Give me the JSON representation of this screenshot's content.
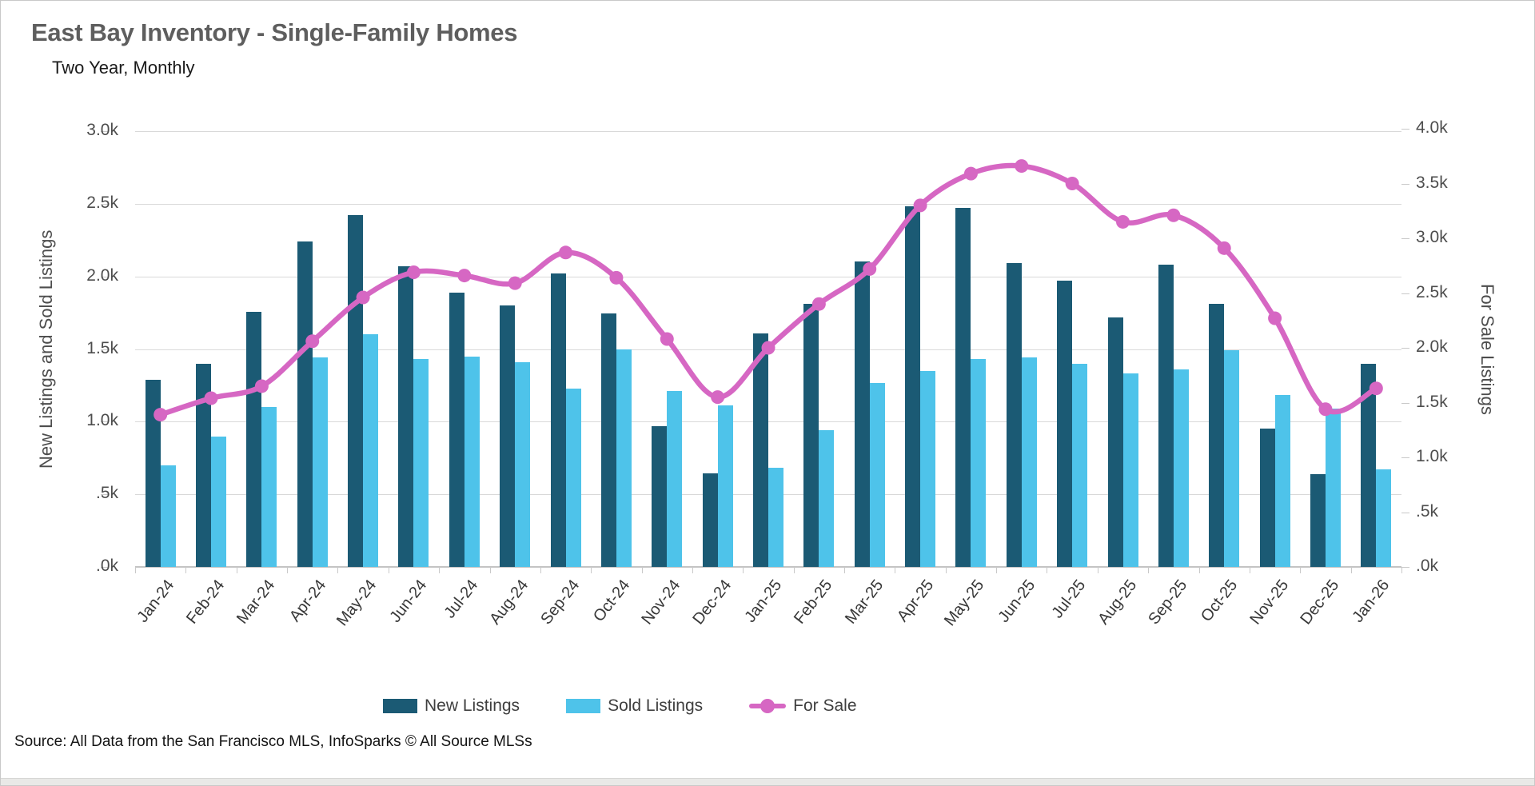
{
  "title": "East Bay Inventory - Single-Family Homes",
  "subtitle": "Two Year, Monthly",
  "source": "Source: All Data from the San Francisco MLS, InfoSparks © All Source MLSs",
  "colors": {
    "new_listings": "#1b5a74",
    "sold_listings": "#4ec3ea",
    "for_sale": "#d667c3",
    "gridline": "#d9d9d9",
    "axis_line": "#c4c4c4",
    "tick_text": "#4d4d4d",
    "x_label_text": "#383838",
    "title_text": "#5e5e5e"
  },
  "legend": {
    "items": [
      {
        "label": "New Listings",
        "marker": "bar",
        "color": "#1b5a74"
      },
      {
        "label": "Sold Listings",
        "marker": "bar",
        "color": "#4ec3ea"
      },
      {
        "label": "For Sale",
        "marker": "line-dot",
        "color": "#d667c3"
      }
    ]
  },
  "chart_data": {
    "type": "combo",
    "title": "East Bay Inventory - Single-Family Homes",
    "subtitle": "Two Year, Monthly",
    "grid": true,
    "legend_position": "bottom",
    "categories": [
      "Jan-24",
      "Feb-24",
      "Mar-24",
      "Apr-24",
      "May-24",
      "Jun-24",
      "Jul-24",
      "Aug-24",
      "Sep-24",
      "Oct-24",
      "Nov-24",
      "Dec-24",
      "Jan-25",
      "Feb-25",
      "Mar-25",
      "Apr-25",
      "May-25",
      "Jun-25",
      "Jul-25",
      "Aug-25",
      "Sep-25",
      "Oct-25",
      "Nov-25",
      "Dec-25",
      "Jan-26"
    ],
    "left_axis": {
      "label": "New Listings and Sold Listings",
      "range": [
        0,
        3000
      ],
      "ticks": [
        {
          "label": ".0k",
          "value": 0
        },
        {
          "label": ".5k",
          "value": 500
        },
        {
          "label": "1.0k",
          "value": 1000
        },
        {
          "label": "1.5k",
          "value": 1500
        },
        {
          "label": "2.0k",
          "value": 2000
        },
        {
          "label": "2.5k",
          "value": 2500
        },
        {
          "label": "3.0k",
          "value": 3000
        }
      ]
    },
    "right_axis": {
      "label": "For Sale Listings",
      "range": [
        0,
        4000
      ],
      "ticks": [
        {
          "label": ".0k",
          "value": 0
        },
        {
          "label": ".5k",
          "value": 500
        },
        {
          "label": "1.0k",
          "value": 1000
        },
        {
          "label": "1.5k",
          "value": 1500
        },
        {
          "label": "2.0k",
          "value": 2000
        },
        {
          "label": "2.5k",
          "value": 2500
        },
        {
          "label": "3.0k",
          "value": 3000
        },
        {
          "label": "3.5k",
          "value": 3500
        },
        {
          "label": "4.0k",
          "value": 4000
        }
      ]
    },
    "series": [
      {
        "name": "New Listings",
        "type": "bar",
        "axis": "left",
        "color": "#1b5a74",
        "values": [
          1290,
          1400,
          1755,
          2240,
          2420,
          2070,
          1890,
          1800,
          2020,
          1745,
          970,
          645,
          1610,
          1810,
          2105,
          2480,
          2470,
          2090,
          1970,
          1715,
          2080,
          1810,
          955,
          640,
          1400
        ]
      },
      {
        "name": "Sold Listings",
        "type": "bar",
        "axis": "left",
        "color": "#4ec3ea",
        "values": [
          700,
          900,
          1100,
          1440,
          1600,
          1430,
          1450,
          1410,
          1230,
          1500,
          1210,
          1110,
          685,
          940,
          1265,
          1350,
          1430,
          1440,
          1400,
          1330,
          1360,
          1490,
          1185,
          1090,
          670
        ]
      },
      {
        "name": "For Sale",
        "type": "line",
        "axis": "right",
        "color": "#d667c3",
        "values": [
          1390,
          1540,
          1650,
          2060,
          2460,
          2690,
          2660,
          2590,
          2870,
          2640,
          2080,
          1550,
          2000,
          2400,
          2720,
          3300,
          3590,
          3660,
          3500,
          3150,
          3210,
          2910,
          2270,
          1440,
          1630
        ]
      }
    ]
  }
}
